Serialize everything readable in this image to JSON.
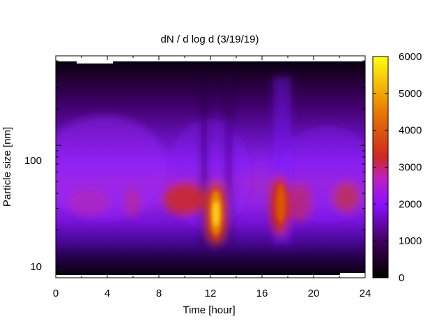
{
  "chart_data": {
    "type": "heatmap",
    "title": "dN / d log d (3/19/19)",
    "xlabel": "Time [hour]",
    "ylabel": "Particle size [nm]",
    "x_ticks": [
      "0",
      "4",
      "8",
      "12",
      "16",
      "20",
      "24"
    ],
    "x_range": [
      0,
      24
    ],
    "y_scale": "log",
    "y_range": [
      8,
      550
    ],
    "y_ticks": [
      "10",
      "100"
    ],
    "colorbar": {
      "range": [
        0,
        6000
      ],
      "ticks": [
        "0",
        "1000",
        "2000",
        "3000",
        "4000",
        "5000",
        "6000"
      ],
      "colormap": "gnuplot (black-purple-red-yellow)"
    },
    "features": [
      {
        "x": 12.4,
        "y": 30,
        "value": 5600
      },
      {
        "x": 17.5,
        "y": 40,
        "value": 3600
      },
      {
        "x": 10.5,
        "y": 42,
        "value": 3200
      },
      {
        "x": 19.5,
        "y": 42,
        "value": 2600
      },
      {
        "x": 22.5,
        "y": 45,
        "value": 2500
      },
      {
        "x": 2.5,
        "y": 42,
        "value": 2200
      },
      {
        "x": 6.0,
        "y": 42,
        "value": 2400
      }
    ],
    "grid": false
  }
}
